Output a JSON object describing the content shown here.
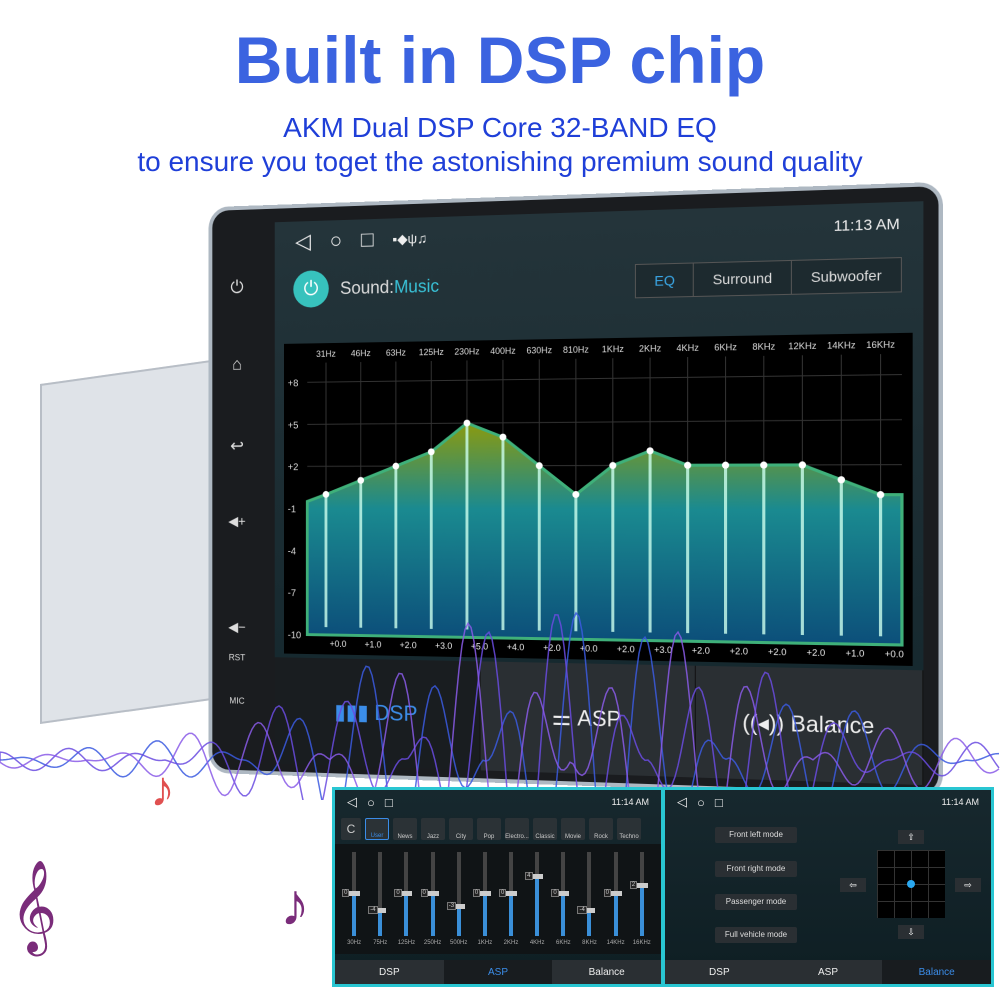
{
  "headline": "Built in DSP chip",
  "subheadline1": "AKM Dual DSP Core 32-BAND EQ",
  "subheadline2": "to ensure you toget the astonishing premium sound quality",
  "colors": {
    "headline": "#3b63e0",
    "accent": "#3aa8e8",
    "power": "#37c2bd"
  },
  "side_buttons": {
    "power": "⏻",
    "home": "⌂",
    "back": "↩",
    "vol_up": "◀+",
    "vol_down": "◀−",
    "rst": "RST",
    "mic": "MIC"
  },
  "main_screen": {
    "nav": {
      "back": "◁",
      "home": "○",
      "recent": "□",
      "status_icons": "▪◆ψ♫"
    },
    "time": "11:13 AM",
    "sound_label": "Sound:",
    "sound_value": "Music",
    "tabs": [
      {
        "label": "EQ",
        "active": true
      },
      {
        "label": "Surround"
      },
      {
        "label": "Subwoofer"
      }
    ],
    "bottom_tabs": [
      {
        "label": "DSP",
        "icon": "bars-icon",
        "active": true
      },
      {
        "label": "ASP",
        "icon": "sliders-icon"
      },
      {
        "label": "Balance",
        "icon": "speaker-icon"
      }
    ]
  },
  "chart_data": {
    "type": "area",
    "categories": [
      "31Hz",
      "46Hz",
      "63Hz",
      "125Hz",
      "230Hz",
      "400Hz",
      "630Hz",
      "810Hz",
      "1KHz",
      "2KHz",
      "4KHz",
      "6KHz",
      "8KHz",
      "12KHz",
      "14KHz",
      "16KHz"
    ],
    "values": [
      0.0,
      1.0,
      2.0,
      3.0,
      5.0,
      4.0,
      2.0,
      0.0,
      2.0,
      3.0,
      2.0,
      2.0,
      2.0,
      2.0,
      1.0,
      0.0
    ],
    "value_labels": [
      "+0.0",
      "+1.0",
      "+2.0",
      "+3.0",
      "+5.0",
      "+4.0",
      "+2.0",
      "+0.0",
      "+2.0",
      "+3.0",
      "+2.0",
      "+2.0",
      "+2.0",
      "+2.0",
      "+1.0",
      "+0.0"
    ],
    "y_ticks": [
      "+8",
      "+5",
      "+2",
      "-1",
      "-4",
      "-7",
      "-10"
    ],
    "ylim": [
      -10,
      8
    ],
    "grid": true
  },
  "asp_screen": {
    "time": "11:14 AM",
    "reset": "C",
    "presets": [
      "User",
      "News",
      "Jazz",
      "City",
      "Pop",
      "Electro...",
      "Classic",
      "Movie",
      "Rock",
      "Techno"
    ],
    "sliders": [
      {
        "f": "30Hz",
        "v": 0
      },
      {
        "f": "75Hz",
        "v": -4
      },
      {
        "f": "125Hz",
        "v": 0
      },
      {
        "f": "250Hz",
        "v": 0
      },
      {
        "f": "500Hz",
        "v": -3
      },
      {
        "f": "1KHz",
        "v": 0
      },
      {
        "f": "2KHz",
        "v": 0
      },
      {
        "f": "4KHz",
        "v": 4
      },
      {
        "f": "6KHz",
        "v": 0
      },
      {
        "f": "8KHz",
        "v": -4
      },
      {
        "f": "14KHz",
        "v": 0
      },
      {
        "f": "16KHz",
        "v": 2
      }
    ],
    "tabs": [
      "DSP",
      "ASP",
      "Balance"
    ]
  },
  "balance_screen": {
    "time": "11:14 AM",
    "modes": [
      "Front left mode",
      "Front right mode",
      "Passenger mode",
      "Full vehicle mode"
    ],
    "arrows": {
      "up": "⇧",
      "down": "⇩",
      "left": "⇦",
      "right": "⇨"
    },
    "tabs": [
      "DSP",
      "ASP",
      "Balance"
    ]
  }
}
